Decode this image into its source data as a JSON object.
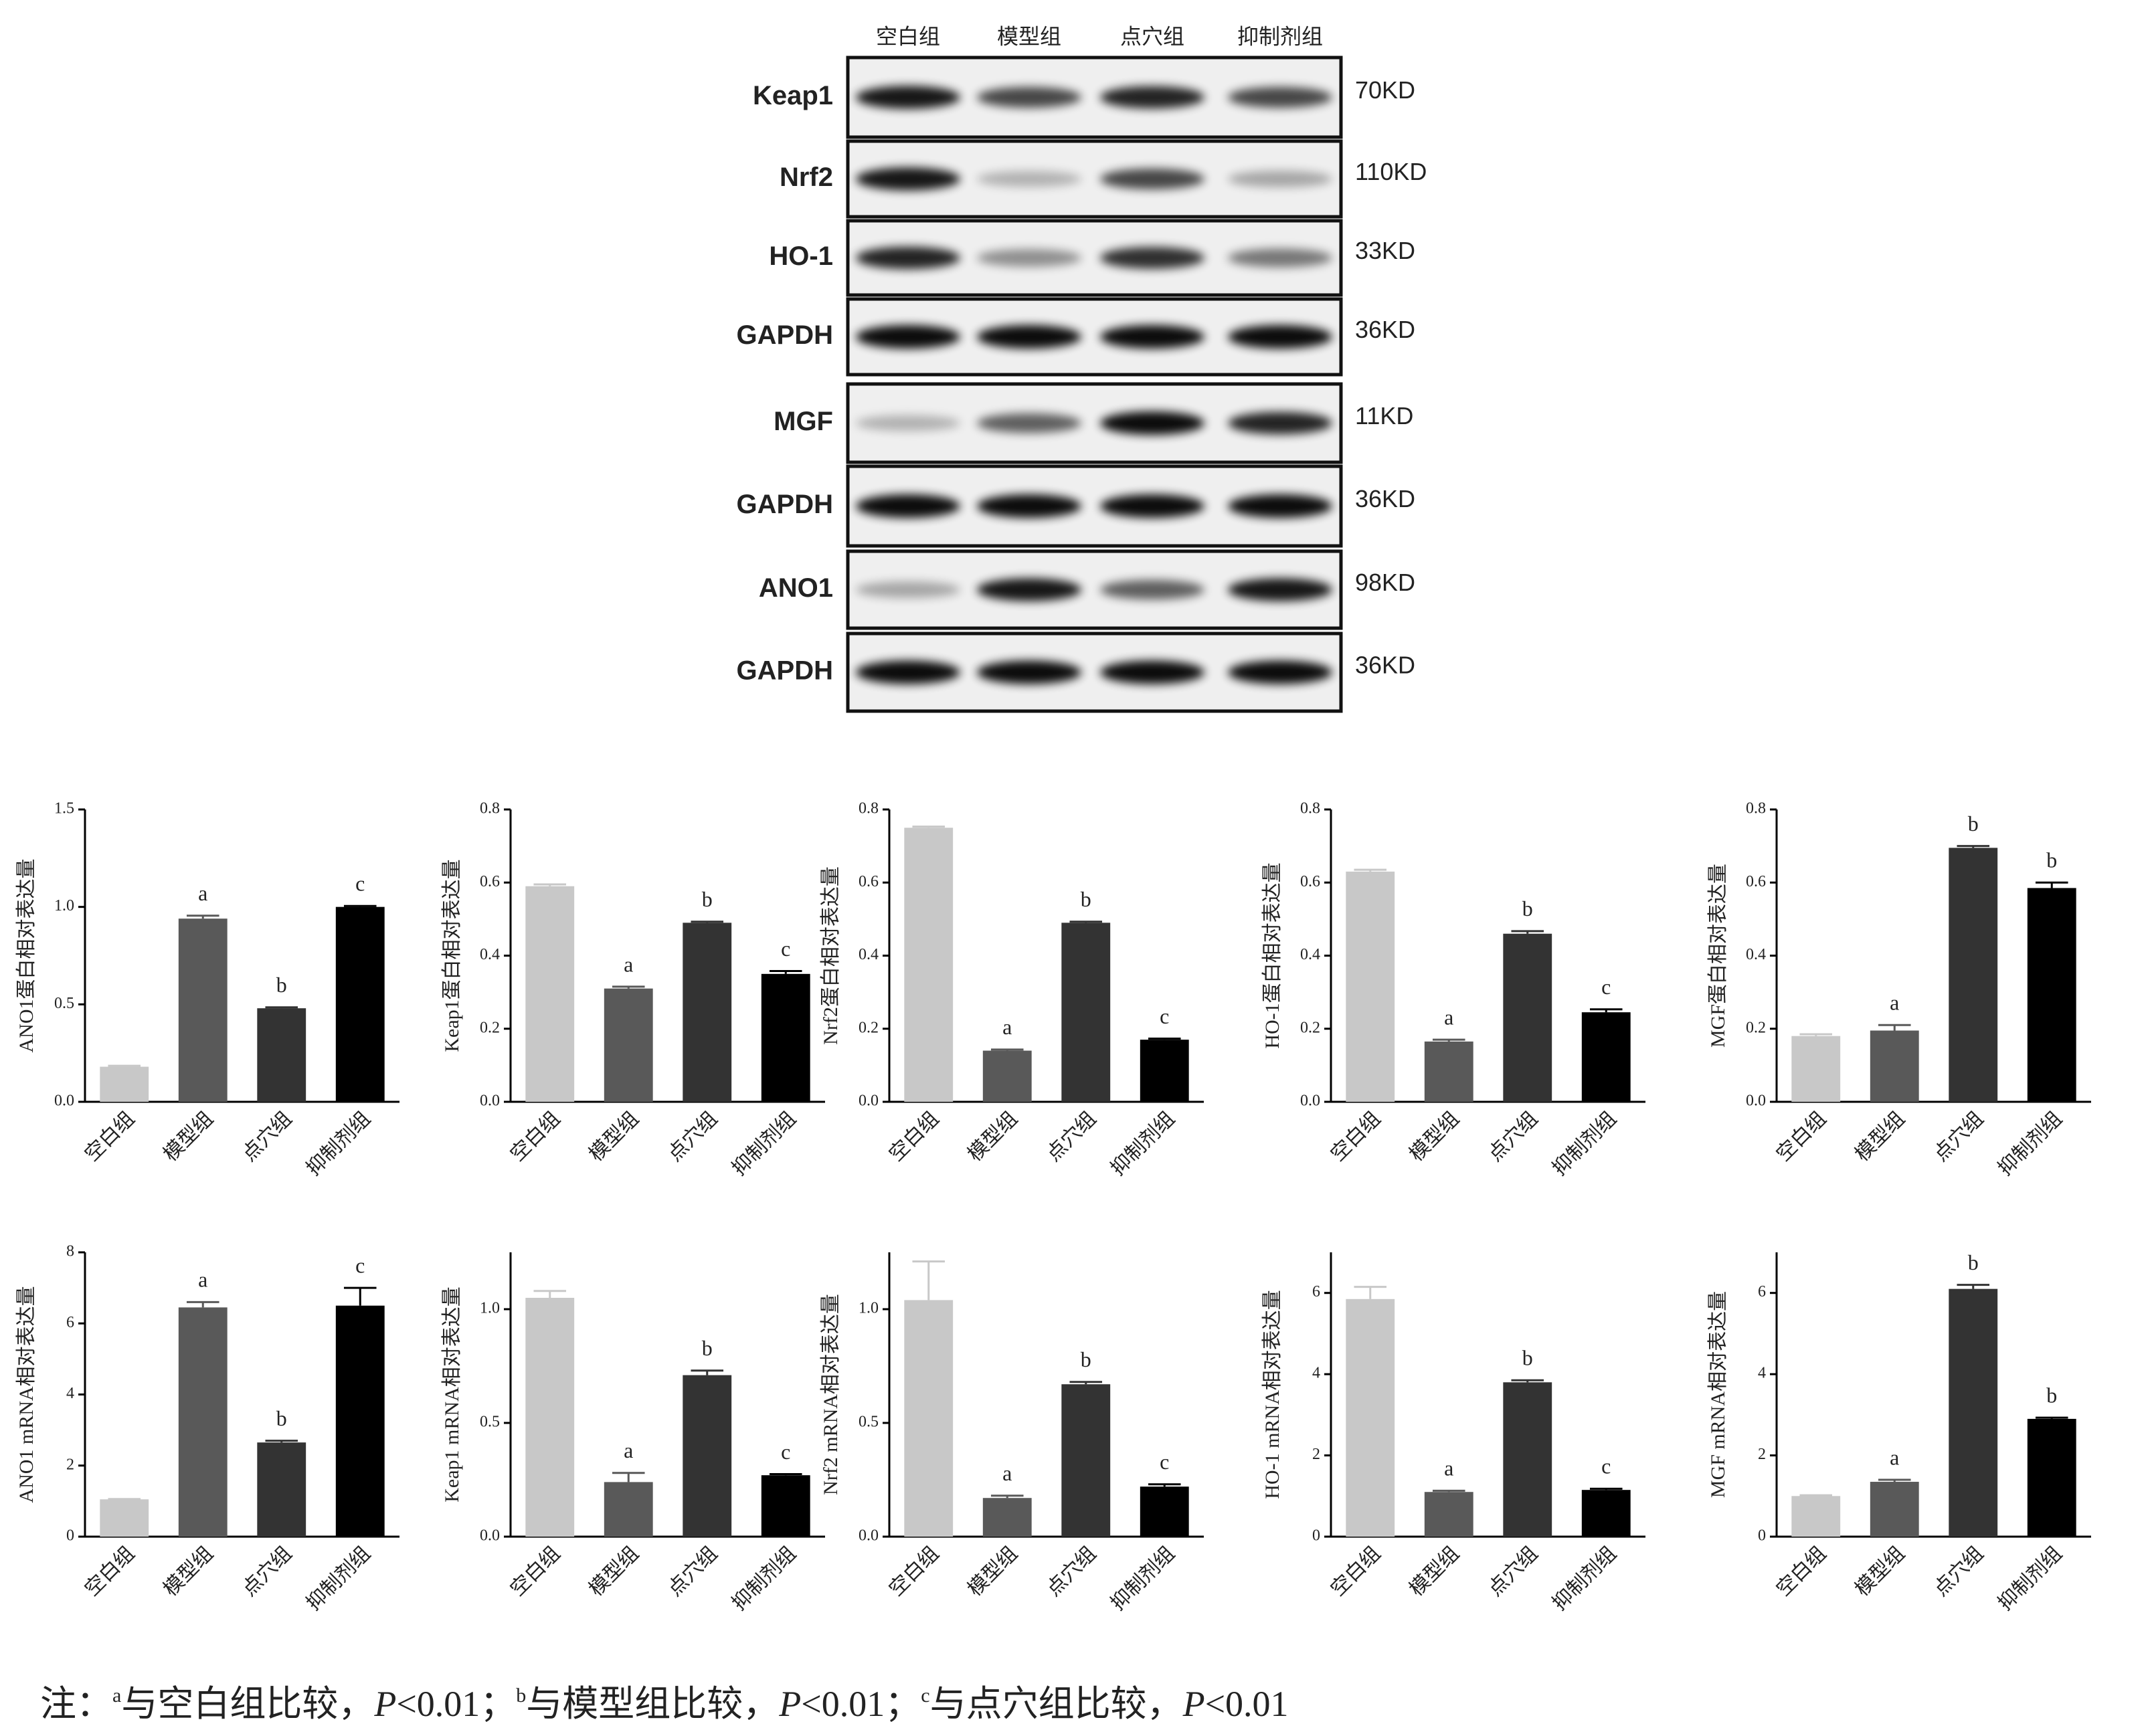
{
  "blot": {
    "lanes": [
      "空白组",
      "模型组",
      "点穴组",
      "抑制剂组"
    ],
    "rows": [
      {
        "protein": "Keap1",
        "kd": "70KD"
      },
      {
        "protein": "Nrf2",
        "kd": "110KD"
      },
      {
        "protein": "HO-1",
        "kd": "33KD"
      },
      {
        "protein": "GAPDH",
        "kd": "36KD"
      },
      {
        "protein": "MGF",
        "kd": "11KD"
      },
      {
        "protein": "GAPDH",
        "kd": "36KD"
      },
      {
        "protein": "ANO1",
        "kd": "98KD"
      },
      {
        "protein": "GAPDH",
        "kd": "36KD"
      }
    ]
  },
  "chart_data": [
    {
      "type": "bar",
      "ylabel": "ANO1蛋白相对表达量",
      "categories": [
        "空白组",
        "模型组",
        "点穴组",
        "抑制剂组"
      ],
      "values": [
        0.18,
        0.94,
        0.48,
        1.0
      ],
      "errors": [
        0.005,
        0.015,
        0.005,
        0.005
      ],
      "annotations": [
        null,
        "a",
        "b",
        "c"
      ],
      "colors": [
        "#c8c8c8",
        "#595959",
        "#333333",
        "#000000"
      ],
      "ylim": [
        0,
        1.5
      ],
      "yticks": [
        {
          "value": 0,
          "label": "0.0"
        },
        0.5,
        {
          "value": 1,
          "label": "1.0"
        },
        1.5
      ]
    },
    {
      "type": "bar",
      "ylabel": "Keap1蛋白相对表达量",
      "categories": [
        "空白组",
        "模型组",
        "点穴组",
        "抑制剂组"
      ],
      "values": [
        0.59,
        0.31,
        0.49,
        0.35
      ],
      "errors": [
        0.005,
        0.005,
        0.003,
        0.008
      ],
      "annotations": [
        null,
        "a",
        "b",
        "c"
      ],
      "colors": [
        "#c8c8c8",
        "#595959",
        "#333333",
        "#000000"
      ],
      "ylim": [
        0,
        0.8
      ],
      "yticks": [
        {
          "value": 0,
          "label": "0.0"
        },
        0.2,
        0.4,
        0.6,
        0.8
      ]
    },
    {
      "type": "bar",
      "ylabel": "Nrf2蛋白相对表达量",
      "categories": [
        "空白组",
        "模型组",
        "点穴组",
        "抑制剂组"
      ],
      "values": [
        0.75,
        0.14,
        0.49,
        0.17
      ],
      "errors": [
        0.003,
        0.003,
        0.003,
        0.003
      ],
      "annotations": [
        null,
        "a",
        "b",
        "c"
      ],
      "colors": [
        "#c8c8c8",
        "#595959",
        "#333333",
        "#000000"
      ],
      "ylim": [
        0,
        0.8
      ],
      "yticks": [
        {
          "value": 0,
          "label": "0.0"
        },
        0.2,
        0.4,
        0.6,
        0.8
      ]
    },
    {
      "type": "bar",
      "ylabel": "HO-1蛋白相对表达量",
      "categories": [
        "空白组",
        "模型组",
        "点穴组",
        "抑制剂组"
      ],
      "values": [
        0.63,
        0.165,
        0.46,
        0.245
      ],
      "errors": [
        0.005,
        0.005,
        0.007,
        0.008
      ],
      "annotations": [
        null,
        "a",
        "b",
        "c"
      ],
      "colors": [
        "#c8c8c8",
        "#595959",
        "#333333",
        "#000000"
      ],
      "ylim": [
        0,
        0.8
      ],
      "yticks": [
        {
          "value": 0,
          "label": "0.0"
        },
        0.2,
        0.4,
        0.6,
        0.8
      ]
    },
    {
      "type": "bar",
      "ylabel": "MGF蛋白相对表达量",
      "categories": [
        "空白组",
        "模型组",
        "点穴组",
        "抑制剂组"
      ],
      "values": [
        0.18,
        0.195,
        0.695,
        0.585
      ],
      "errors": [
        0.005,
        0.015,
        0.005,
        0.015
      ],
      "annotations": [
        null,
        "a",
        "b",
        "b"
      ],
      "colors": [
        "#c8c8c8",
        "#595959",
        "#333333",
        "#000000"
      ],
      "ylim": [
        0,
        0.8
      ],
      "yticks": [
        {
          "value": 0,
          "label": "0.0"
        },
        0.2,
        0.4,
        0.6,
        0.8
      ]
    },
    {
      "type": "bar",
      "ylabel": "ANO1 mRNA相对表达量",
      "categories": [
        "空白组",
        "模型组",
        "点穴组",
        "抑制剂组"
      ],
      "values": [
        1.05,
        6.45,
        2.65,
        6.5
      ],
      "errors": [
        0.01,
        0.15,
        0.05,
        0.5
      ],
      "annotations": [
        null,
        "a",
        "b",
        "c"
      ],
      "colors": [
        "#c8c8c8",
        "#595959",
        "#333333",
        "#000000"
      ],
      "ylim": [
        0,
        8
      ],
      "yticks": [
        0,
        2,
        4,
        6,
        8
      ]
    },
    {
      "type": "bar",
      "ylabel": "Keap1 mRNA相对表达量",
      "categories": [
        "空白组",
        "模型组",
        "点穴组",
        "抑制剂组"
      ],
      "values": [
        1.05,
        0.24,
        0.71,
        0.27
      ],
      "errors": [
        0.03,
        0.04,
        0.02,
        0.005
      ],
      "annotations": [
        null,
        "a",
        "b",
        "c"
      ],
      "colors": [
        "#c8c8c8",
        "#595959",
        "#333333",
        "#000000"
      ],
      "ylim": [
        0,
        1.25
      ],
      "yticks": [
        {
          "value": 0,
          "label": "0.0"
        },
        0.5,
        {
          "value": 1,
          "label": "1.0"
        }
      ]
    },
    {
      "type": "bar",
      "ylabel": "Nrf2 mRNA相对表达量",
      "categories": [
        "空白组",
        "模型组",
        "点穴组",
        "抑制剂组"
      ],
      "values": [
        1.04,
        0.17,
        0.67,
        0.22
      ],
      "errors": [
        0.17,
        0.01,
        0.01,
        0.01
      ],
      "annotations": [
        null,
        "a",
        "b",
        "c"
      ],
      "colors": [
        "#c8c8c8",
        "#595959",
        "#333333",
        "#000000"
      ],
      "ylim": [
        0,
        1.25
      ],
      "yticks": [
        {
          "value": 0,
          "label": "0.0"
        },
        0.5,
        {
          "value": 1,
          "label": "1.0"
        }
      ]
    },
    {
      "type": "bar",
      "ylabel": "HO-1 mRNA相对表达量",
      "categories": [
        "空白组",
        "模型组",
        "点穴组",
        "抑制剂组"
      ],
      "values": [
        5.85,
        1.1,
        3.8,
        1.15
      ],
      "errors": [
        0.3,
        0.03,
        0.05,
        0.03
      ],
      "annotations": [
        null,
        "a",
        "b",
        "c"
      ],
      "colors": [
        "#c8c8c8",
        "#595959",
        "#333333",
        "#000000"
      ],
      "ylim": [
        0,
        7
      ],
      "yticks": [
        0,
        2,
        4,
        6
      ]
    },
    {
      "type": "bar",
      "ylabel": "MGF mRNA相对表达量",
      "categories": [
        "空白组",
        "模型组",
        "点穴组",
        "抑制剂组"
      ],
      "values": [
        1.0,
        1.35,
        6.1,
        2.9
      ],
      "errors": [
        0.02,
        0.05,
        0.1,
        0.03
      ],
      "annotations": [
        null,
        "a",
        "b",
        "b"
      ],
      "colors": [
        "#c8c8c8",
        "#595959",
        "#333333",
        "#000000"
      ],
      "ylim": [
        0,
        7
      ],
      "yticks": [
        0,
        2,
        4,
        6
      ]
    }
  ],
  "note": {
    "prefix": "注：",
    "items": [
      {
        "mark": "a",
        "text": "与空白组比较，",
        "p": "P",
        "cond": "<0.01；"
      },
      {
        "mark": "b",
        "text": "与模型组比较，",
        "p": "P",
        "cond": "<0.01；"
      },
      {
        "mark": "c",
        "text": "与点穴组比较，",
        "p": "P",
        "cond": "<0.01"
      }
    ]
  }
}
